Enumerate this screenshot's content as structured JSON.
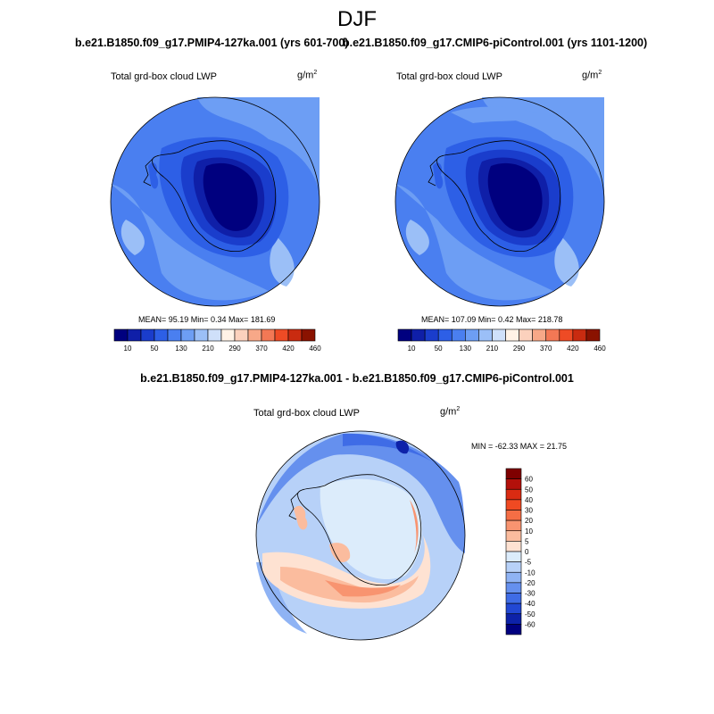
{
  "title": "DJF",
  "panels": [
    {
      "title": "b.e21.B1850.f09_g17.PMIP4-127ka.001 (yrs 601-700)",
      "variable_label": "Total grd-box cloud LWP",
      "unit_base": "g/m",
      "unit_exp": "2",
      "stats": "MEAN=  95.19  Min=   0.34  Max= 181.69"
    },
    {
      "title": "b.e21.B1850.f09_g17.CMIP6-piControl.001 (yrs 1101-1200)",
      "variable_label": "Total grd-box cloud LWP",
      "unit_base": "g/m",
      "unit_exp": "2",
      "stats": "MEAN= 107.09  Min=   0.42  Max= 218.78"
    }
  ],
  "difference": {
    "title": "b.e21.B1850.f09_g17.PMIP4-127ka.001 - b.e21.B1850.f09_g17.CMIP6-piControl.001",
    "variable_label": "Total grd-box cloud LWP",
    "unit_base": "g/m",
    "unit_exp": "2",
    "stats": "MIN = -62.33 MAX =  21.75"
  },
  "colorbar_abs": {
    "colors": [
      "#00007f",
      "#0f1fa8",
      "#1a3dcc",
      "#2d5fe6",
      "#4a7ff0",
      "#6d9ef4",
      "#9bbff7",
      "#cfe0fa",
      "#fff2e6",
      "#fbd1bd",
      "#f7a888",
      "#f37855",
      "#ee4b25",
      "#c92b10",
      "#8a1200"
    ],
    "tick_labels": [
      "10",
      "50",
      "130",
      "210",
      "290",
      "370",
      "420",
      "460"
    ]
  },
  "colorbar_diff": {
    "colors": [
      "#7f0000",
      "#b3100a",
      "#d92b12",
      "#f04a22",
      "#f56e45",
      "#f89470",
      "#fbbc9e",
      "#fee2d2",
      "#dcecfb",
      "#b7d1f8",
      "#8fb3f4",
      "#6590ee",
      "#3f6ce6",
      "#2248d4",
      "#0d22a9",
      "#000080"
    ],
    "tick_labels": [
      "60",
      "50",
      "40",
      "30",
      "20",
      "10",
      "5",
      "0",
      "-5",
      "-10",
      "-20",
      "-30",
      "-40",
      "-50",
      "-60"
    ]
  }
}
